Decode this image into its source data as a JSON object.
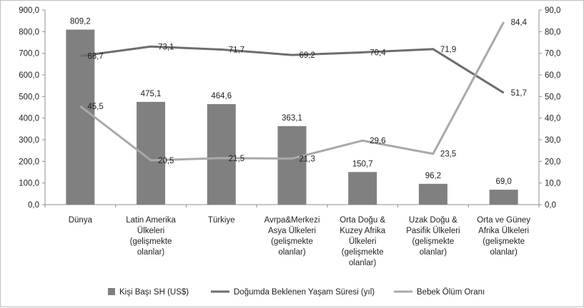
{
  "chart_data": {
    "type": "bar",
    "categories": [
      [
        "Dünya"
      ],
      [
        "Latin Amerika",
        "Ülkeleri",
        "(gelişmekte",
        "olanlar)"
      ],
      [
        "Türkiye"
      ],
      [
        "Avrpa&Merkezi",
        "Asya Ülkeleri",
        "(gelişmekte",
        "olanlar)"
      ],
      [
        "Orta Doğu  &",
        "Kuzey Afrika",
        "Ülkeleri",
        "(gelişmekte",
        "olanlar)"
      ],
      [
        "Uzak Doğu  &",
        "Pasifik Ülkeleri",
        "(gelişmekte",
        "olanlar)"
      ],
      [
        "Orta ve Güney",
        "Afrika Ülkeleri",
        "(gelişmekte",
        "olanlar)"
      ]
    ],
    "series": [
      {
        "name": "Kişi Başı SH (US$)",
        "kind": "bar",
        "axis": "left",
        "color": "#808080",
        "values": [
          809.2,
          475.1,
          464.6,
          363.1,
          150.7,
          96.2,
          69.0
        ],
        "labels": [
          "809,2",
          "475,1",
          "464,6",
          "363,1",
          "150,7",
          "96,2",
          "69,0"
        ]
      },
      {
        "name": "Doğumda  Beklenen Yaşam Süresi (yıl)",
        "kind": "line",
        "axis": "right",
        "color": "#6d6d6d",
        "values": [
          68.7,
          73.1,
          71.7,
          69.2,
          70.4,
          71.9,
          51.7
        ],
        "labels": [
          "68,7",
          "73,1",
          "71,7",
          "69,2",
          "70,4",
          "71,9",
          "51,7"
        ]
      },
      {
        "name": "Bebek Ölüm Oranı",
        "kind": "line",
        "axis": "right",
        "color": "#a9a9a9",
        "values": [
          45.5,
          20.5,
          21.5,
          21.3,
          29.6,
          23.5,
          84.4
        ],
        "labels": [
          "45,5",
          "20,5",
          "21,5",
          "21,3",
          "29,6",
          "23,5",
          "84,4"
        ]
      }
    ],
    "y_left": {
      "range": [
        0,
        900
      ],
      "ticks": [
        "0,0",
        "100,0",
        "200,0",
        "300,0",
        "400,0",
        "500,0",
        "600,0",
        "700,0",
        "800,0",
        "900,0"
      ]
    },
    "y_right": {
      "range": [
        0,
        90
      ],
      "ticks": [
        "0,0",
        "10,0",
        "20,0",
        "30,0",
        "40,0",
        "50,0",
        "60,0",
        "70,0",
        "80,0",
        "90,0"
      ]
    },
    "grid": false,
    "legend": "bottom"
  }
}
